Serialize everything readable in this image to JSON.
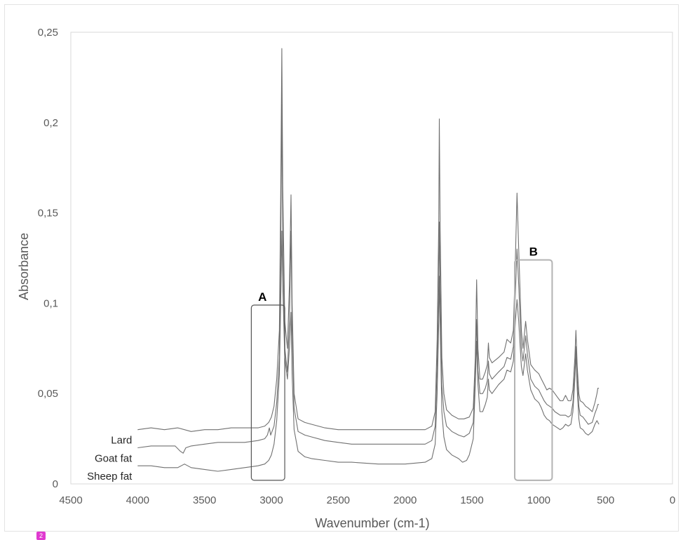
{
  "chart_data": {
    "type": "line",
    "title": "",
    "xlabel": "Wavenumber (cm-1)",
    "ylabel": "Absorbance",
    "xlim": [
      4500,
      0
    ],
    "x_reversed": true,
    "ylim": [
      0,
      0.25
    ],
    "x_ticks": [
      4500,
      4000,
      3500,
      3000,
      2500,
      2000,
      1500,
      1000,
      500,
      0
    ],
    "x_tick_labels": [
      "4500",
      "4000",
      "3500",
      "3000",
      "2500",
      "2000",
      "1500",
      "1000",
      "500",
      "0"
    ],
    "y_ticks": [
      0,
      0.05,
      0.1,
      0.15,
      0.2,
      0.25
    ],
    "y_tick_labels": [
      "0",
      "0,05",
      "0,1",
      "0,15",
      "0,2",
      "0,25"
    ],
    "grid": false,
    "legend": "none",
    "line_color": "#707070",
    "series": [
      {
        "name": "Lard",
        "points": [
          [
            4000,
            0.03
          ],
          [
            3900,
            0.031
          ],
          [
            3800,
            0.03
          ],
          [
            3700,
            0.031
          ],
          [
            3600,
            0.029
          ],
          [
            3500,
            0.03
          ],
          [
            3400,
            0.03
          ],
          [
            3300,
            0.031
          ],
          [
            3200,
            0.031
          ],
          [
            3100,
            0.031
          ],
          [
            3050,
            0.032
          ],
          [
            3020,
            0.034
          ],
          [
            3000,
            0.037
          ],
          [
            2980,
            0.043
          ],
          [
            2960,
            0.058
          ],
          [
            2940,
            0.085
          ],
          [
            2930,
            0.16
          ],
          [
            2922,
            0.241
          ],
          [
            2915,
            0.165
          ],
          [
            2900,
            0.09
          ],
          [
            2880,
            0.075
          ],
          [
            2865,
            0.11
          ],
          [
            2853,
            0.16
          ],
          [
            2845,
            0.1
          ],
          [
            2830,
            0.05
          ],
          [
            2800,
            0.036
          ],
          [
            2750,
            0.034
          ],
          [
            2700,
            0.033
          ],
          [
            2600,
            0.031
          ],
          [
            2500,
            0.03
          ],
          [
            2400,
            0.03
          ],
          [
            2200,
            0.03
          ],
          [
            2000,
            0.03
          ],
          [
            1850,
            0.03
          ],
          [
            1800,
            0.032
          ],
          [
            1775,
            0.04
          ],
          [
            1760,
            0.08
          ],
          [
            1748,
            0.145
          ],
          [
            1744,
            0.202
          ],
          [
            1738,
            0.145
          ],
          [
            1725,
            0.07
          ],
          [
            1710,
            0.05
          ],
          [
            1690,
            0.041
          ],
          [
            1650,
            0.038
          ],
          [
            1600,
            0.036
          ],
          [
            1560,
            0.036
          ],
          [
            1520,
            0.037
          ],
          [
            1490,
            0.042
          ],
          [
            1475,
            0.07
          ],
          [
            1465,
            0.113
          ],
          [
            1455,
            0.075
          ],
          [
            1440,
            0.058
          ],
          [
            1420,
            0.058
          ],
          [
            1400,
            0.062
          ],
          [
            1385,
            0.066
          ],
          [
            1377,
            0.078
          ],
          [
            1370,
            0.07
          ],
          [
            1350,
            0.067
          ],
          [
            1300,
            0.07
          ],
          [
            1260,
            0.073
          ],
          [
            1238,
            0.08
          ],
          [
            1210,
            0.078
          ],
          [
            1190,
            0.085
          ],
          [
            1175,
            0.125
          ],
          [
            1163,
            0.161
          ],
          [
            1150,
            0.13
          ],
          [
            1130,
            0.085
          ],
          [
            1118,
            0.075
          ],
          [
            1098,
            0.09
          ],
          [
            1085,
            0.08
          ],
          [
            1060,
            0.066
          ],
          [
            1030,
            0.063
          ],
          [
            1000,
            0.061
          ],
          [
            980,
            0.058
          ],
          [
            960,
            0.055
          ],
          [
            940,
            0.052
          ],
          [
            920,
            0.053
          ],
          [
            900,
            0.052
          ],
          [
            880,
            0.05
          ],
          [
            860,
            0.048
          ],
          [
            840,
            0.046
          ],
          [
            820,
            0.046
          ],
          [
            800,
            0.049
          ],
          [
            780,
            0.046
          ],
          [
            760,
            0.046
          ],
          [
            745,
            0.052
          ],
          [
            730,
            0.07
          ],
          [
            722,
            0.085
          ],
          [
            712,
            0.065
          ],
          [
            700,
            0.05
          ],
          [
            690,
            0.046
          ],
          [
            670,
            0.045
          ],
          [
            650,
            0.043
          ],
          [
            630,
            0.042
          ],
          [
            600,
            0.04
          ],
          [
            580,
            0.045
          ],
          [
            565,
            0.05
          ],
          [
            558,
            0.053
          ],
          [
            550,
            0.053
          ]
        ]
      },
      {
        "name": "Goat fat",
        "points": [
          [
            4000,
            0.02
          ],
          [
            3900,
            0.021
          ],
          [
            3800,
            0.021
          ],
          [
            3720,
            0.021
          ],
          [
            3680,
            0.018
          ],
          [
            3660,
            0.017
          ],
          [
            3640,
            0.02
          ],
          [
            3600,
            0.021
          ],
          [
            3500,
            0.022
          ],
          [
            3400,
            0.023
          ],
          [
            3300,
            0.023
          ],
          [
            3200,
            0.023
          ],
          [
            3100,
            0.024
          ],
          [
            3050,
            0.025
          ],
          [
            3030,
            0.027
          ],
          [
            3015,
            0.031
          ],
          [
            3005,
            0.027
          ],
          [
            2980,
            0.032
          ],
          [
            2960,
            0.045
          ],
          [
            2940,
            0.07
          ],
          [
            2930,
            0.13
          ],
          [
            2922,
            0.21
          ],
          [
            2915,
            0.14
          ],
          [
            2900,
            0.075
          ],
          [
            2880,
            0.062
          ],
          [
            2865,
            0.09
          ],
          [
            2853,
            0.14
          ],
          [
            2845,
            0.085
          ],
          [
            2830,
            0.042
          ],
          [
            2800,
            0.029
          ],
          [
            2750,
            0.027
          ],
          [
            2700,
            0.026
          ],
          [
            2600,
            0.024
          ],
          [
            2500,
            0.023
          ],
          [
            2400,
            0.022
          ],
          [
            2200,
            0.022
          ],
          [
            2000,
            0.022
          ],
          [
            1850,
            0.022
          ],
          [
            1800,
            0.024
          ],
          [
            1775,
            0.032
          ],
          [
            1760,
            0.065
          ],
          [
            1748,
            0.11
          ],
          [
            1744,
            0.145
          ],
          [
            1738,
            0.11
          ],
          [
            1725,
            0.055
          ],
          [
            1710,
            0.04
          ],
          [
            1690,
            0.032
          ],
          [
            1650,
            0.029
          ],
          [
            1600,
            0.027
          ],
          [
            1560,
            0.026
          ],
          [
            1520,
            0.028
          ],
          [
            1490,
            0.034
          ],
          [
            1475,
            0.06
          ],
          [
            1465,
            0.091
          ],
          [
            1455,
            0.063
          ],
          [
            1440,
            0.05
          ],
          [
            1420,
            0.05
          ],
          [
            1400,
            0.053
          ],
          [
            1385,
            0.057
          ],
          [
            1377,
            0.068
          ],
          [
            1370,
            0.061
          ],
          [
            1350,
            0.058
          ],
          [
            1300,
            0.062
          ],
          [
            1260,
            0.065
          ],
          [
            1238,
            0.07
          ],
          [
            1210,
            0.069
          ],
          [
            1190,
            0.076
          ],
          [
            1175,
            0.106
          ],
          [
            1163,
            0.13
          ],
          [
            1150,
            0.11
          ],
          [
            1130,
            0.075
          ],
          [
            1118,
            0.068
          ],
          [
            1098,
            0.082
          ],
          [
            1085,
            0.072
          ],
          [
            1060,
            0.058
          ],
          [
            1030,
            0.054
          ],
          [
            1000,
            0.052
          ],
          [
            980,
            0.049
          ],
          [
            960,
            0.046
          ],
          [
            940,
            0.044
          ],
          [
            920,
            0.043
          ],
          [
            900,
            0.042
          ],
          [
            880,
            0.04
          ],
          [
            860,
            0.039
          ],
          [
            840,
            0.038
          ],
          [
            820,
            0.038
          ],
          [
            800,
            0.038
          ],
          [
            780,
            0.037
          ],
          [
            760,
            0.038
          ],
          [
            745,
            0.045
          ],
          [
            730,
            0.062
          ],
          [
            722,
            0.076
          ],
          [
            712,
            0.058
          ],
          [
            700,
            0.043
          ],
          [
            690,
            0.038
          ],
          [
            670,
            0.037
          ],
          [
            650,
            0.035
          ],
          [
            630,
            0.033
          ],
          [
            600,
            0.034
          ],
          [
            580,
            0.039
          ],
          [
            565,
            0.042
          ],
          [
            558,
            0.044
          ],
          [
            550,
            0.044
          ]
        ]
      },
      {
        "name": "Sheep fat",
        "points": [
          [
            4000,
            0.01
          ],
          [
            3900,
            0.01
          ],
          [
            3800,
            0.009
          ],
          [
            3700,
            0.009
          ],
          [
            3650,
            0.011
          ],
          [
            3600,
            0.009
          ],
          [
            3500,
            0.008
          ],
          [
            3400,
            0.007
          ],
          [
            3300,
            0.008
          ],
          [
            3200,
            0.009
          ],
          [
            3100,
            0.01
          ],
          [
            3050,
            0.011
          ],
          [
            3020,
            0.013
          ],
          [
            3000,
            0.016
          ],
          [
            2980,
            0.022
          ],
          [
            2960,
            0.035
          ],
          [
            2940,
            0.06
          ],
          [
            2930,
            0.1
          ],
          [
            2922,
            0.14
          ],
          [
            2915,
            0.11
          ],
          [
            2900,
            0.07
          ],
          [
            2880,
            0.058
          ],
          [
            2865,
            0.075
          ],
          [
            2853,
            0.095
          ],
          [
            2845,
            0.06
          ],
          [
            2830,
            0.03
          ],
          [
            2800,
            0.018
          ],
          [
            2750,
            0.015
          ],
          [
            2700,
            0.014
          ],
          [
            2600,
            0.013
          ],
          [
            2500,
            0.012
          ],
          [
            2400,
            0.012
          ],
          [
            2200,
            0.011
          ],
          [
            2000,
            0.011
          ],
          [
            1850,
            0.012
          ],
          [
            1800,
            0.014
          ],
          [
            1775,
            0.022
          ],
          [
            1760,
            0.05
          ],
          [
            1748,
            0.09
          ],
          [
            1744,
            0.115
          ],
          [
            1738,
            0.09
          ],
          [
            1725,
            0.04
          ],
          [
            1710,
            0.026
          ],
          [
            1690,
            0.019
          ],
          [
            1650,
            0.016
          ],
          [
            1600,
            0.014
          ],
          [
            1570,
            0.012
          ],
          [
            1540,
            0.013
          ],
          [
            1520,
            0.016
          ],
          [
            1490,
            0.025
          ],
          [
            1475,
            0.055
          ],
          [
            1465,
            0.079
          ],
          [
            1455,
            0.055
          ],
          [
            1440,
            0.04
          ],
          [
            1420,
            0.04
          ],
          [
            1400,
            0.044
          ],
          [
            1385,
            0.048
          ],
          [
            1377,
            0.058
          ],
          [
            1370,
            0.052
          ],
          [
            1350,
            0.05
          ],
          [
            1300,
            0.055
          ],
          [
            1260,
            0.058
          ],
          [
            1238,
            0.063
          ],
          [
            1210,
            0.062
          ],
          [
            1190,
            0.068
          ],
          [
            1175,
            0.09
          ],
          [
            1163,
            0.102
          ],
          [
            1150,
            0.09
          ],
          [
            1130,
            0.065
          ],
          [
            1118,
            0.06
          ],
          [
            1098,
            0.072
          ],
          [
            1085,
            0.063
          ],
          [
            1060,
            0.052
          ],
          [
            1030,
            0.047
          ],
          [
            1000,
            0.045
          ],
          [
            980,
            0.042
          ],
          [
            960,
            0.038
          ],
          [
            940,
            0.036
          ],
          [
            920,
            0.035
          ],
          [
            900,
            0.033
          ],
          [
            880,
            0.032
          ],
          [
            860,
            0.031
          ],
          [
            840,
            0.03
          ],
          [
            820,
            0.031
          ],
          [
            800,
            0.033
          ],
          [
            780,
            0.032
          ],
          [
            760,
            0.033
          ],
          [
            745,
            0.04
          ],
          [
            730,
            0.058
          ],
          [
            722,
            0.072
          ],
          [
            712,
            0.052
          ],
          [
            700,
            0.036
          ],
          [
            690,
            0.031
          ],
          [
            670,
            0.03
          ],
          [
            650,
            0.028
          ],
          [
            630,
            0.027
          ],
          [
            600,
            0.029
          ],
          [
            580,
            0.033
          ],
          [
            565,
            0.035
          ],
          [
            558,
            0.034
          ],
          [
            550,
            0.033
          ]
        ]
      }
    ],
    "annotations": [
      {
        "label": "A",
        "x_range": [
          3150,
          2900
        ],
        "y_range": [
          0.002,
          0.099
        ],
        "box_color": "#555555"
      },
      {
        "label": "B",
        "x_range": [
          1180,
          900
        ],
        "y_range": [
          0.002,
          0.124
        ],
        "box_color": "#b3b3b3"
      }
    ]
  },
  "page_badge": "2"
}
